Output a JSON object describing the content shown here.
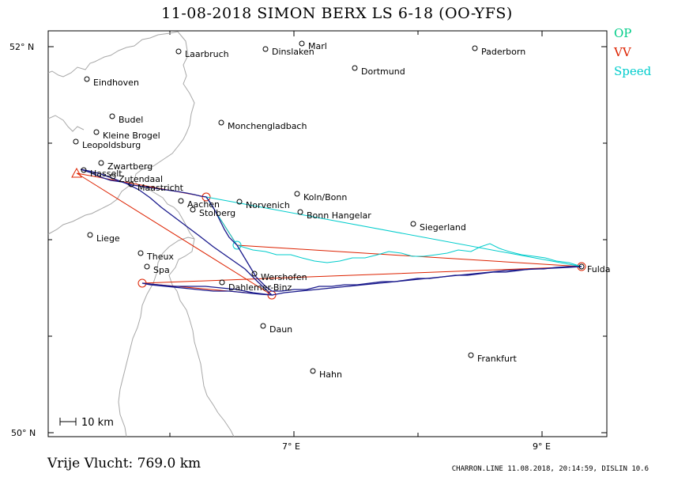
{
  "title": "11-08-2018    SIMON BERX    LS 6-18 (OO-YFS)",
  "legend": [
    {
      "label": "OP",
      "color": "#00cc88"
    },
    {
      "label": "VV",
      "color": "#dd2200"
    },
    {
      "label": "Speed",
      "color": "#00cccc"
    }
  ],
  "axes": {
    "lat_top": "52° N",
    "lat_bottom": "50° N",
    "lon_7": "7° E",
    "lon_9": "9° E"
  },
  "scale_label": "10 km",
  "distance": "Vrije Vlucht:  769.0 km",
  "footer": "CHARRON.LINE 11.08.2018, 20:14:59, DISLIN 10.6",
  "places": [
    {
      "name": "Marl"
    },
    {
      "name": "Laarbruch"
    },
    {
      "name": "Dinslaken"
    },
    {
      "name": "Paderborn"
    },
    {
      "name": "Eindhoven"
    },
    {
      "name": "Dortmund"
    },
    {
      "name": "Budel"
    },
    {
      "name": "Kleine Brogel"
    },
    {
      "name": "Monchengladbach"
    },
    {
      "name": "Leopoldsburg"
    },
    {
      "name": "Zwartberg"
    },
    {
      "name": "Hasselt"
    },
    {
      "name": "Zutendaal"
    },
    {
      "name": "Maastricht"
    },
    {
      "name": "Koln/Bonn"
    },
    {
      "name": "Aachen"
    },
    {
      "name": "Norvenich"
    },
    {
      "name": "Stolberg"
    },
    {
      "name": "Bonn Hangelar"
    },
    {
      "name": "Siegerland"
    },
    {
      "name": "Liege"
    },
    {
      "name": "Theux"
    },
    {
      "name": "Fulda"
    },
    {
      "name": "Spa"
    },
    {
      "name": "Wershofen"
    },
    {
      "name": "Dahlemer-Binz"
    },
    {
      "name": "Daun"
    },
    {
      "name": "Frankfurt"
    },
    {
      "name": "Hahn"
    }
  ]
}
